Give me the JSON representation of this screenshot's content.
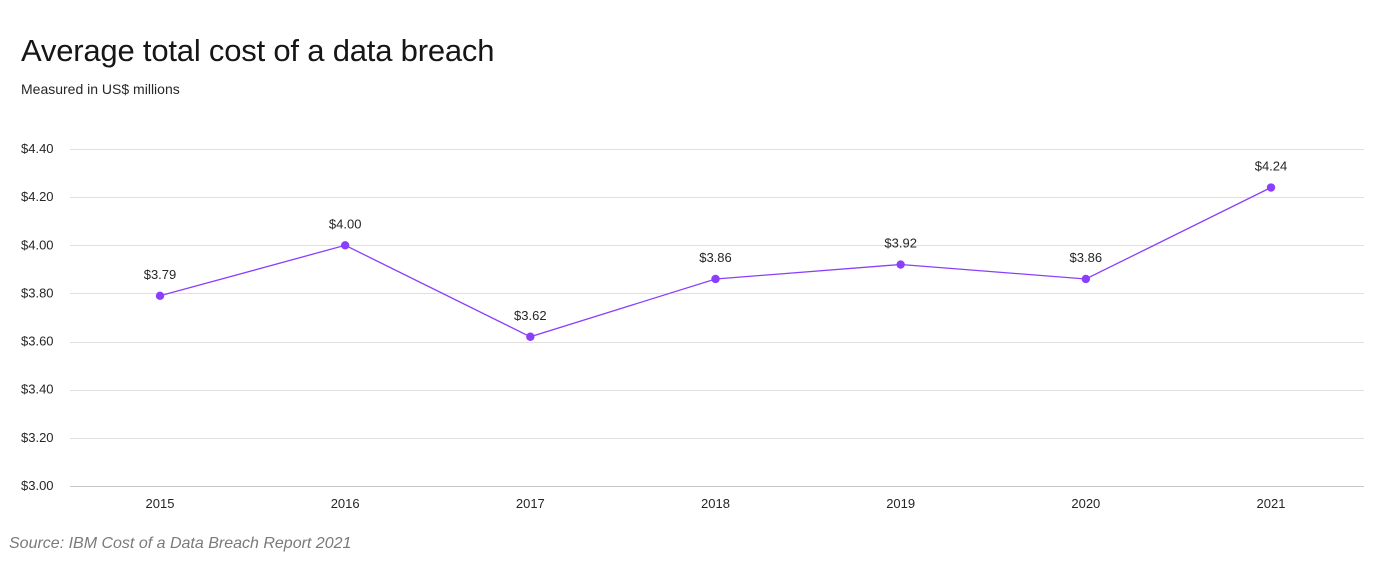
{
  "chart_data": {
    "type": "line",
    "title": "Average total cost of a data breach",
    "subtitle": "Measured in US$ millions",
    "source": "Source: IBM Cost of a Data Breach Report 2021",
    "categories": [
      "2015",
      "2016",
      "2017",
      "2018",
      "2019",
      "2020",
      "2021"
    ],
    "series": [
      {
        "values": [
          3.79,
          4.0,
          3.62,
          3.86,
          3.92,
          3.86,
          4.24
        ],
        "data_labels": [
          "$3.79",
          "$4.00",
          "$3.62",
          "$3.86",
          "$3.92",
          "$3.86",
          "$4.24"
        ],
        "color": "#8a3ffc"
      }
    ],
    "yticks": [
      3.0,
      3.2,
      3.4,
      3.6,
      3.8,
      4.0,
      4.2,
      4.4
    ],
    "ytick_labels": [
      "$3.00",
      "$3.20",
      "$3.40",
      "$3.60",
      "$3.80",
      "$4.00",
      "$4.20",
      "$4.40"
    ],
    "ylim": [
      3.0,
      4.4
    ],
    "grid": true,
    "legend": "none"
  }
}
